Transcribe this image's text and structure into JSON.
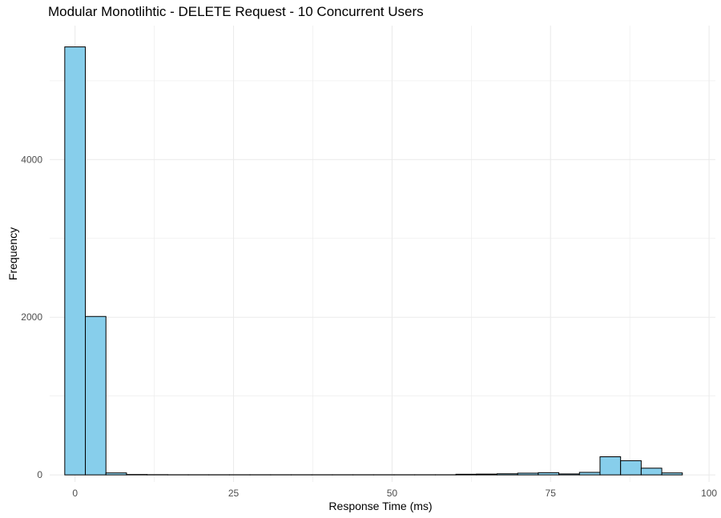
{
  "chart_data": {
    "type": "bar",
    "title": "Modular Monotlihtic - DELETE Request - 10 Concurrent Users",
    "xlabel": "Response Time (ms)",
    "ylabel": "Frequency",
    "xlim": [
      -4,
      101
    ],
    "ylim": [
      -90,
      5700
    ],
    "x_ticks": [
      0,
      25,
      50,
      75,
      100
    ],
    "y_ticks": [
      0,
      2000,
      4000
    ],
    "grid": true,
    "legend": "none",
    "bin_width": 3.247,
    "bin_start": -1.62,
    "values": [
      5430,
      2010,
      25,
      5,
      3,
      2,
      2,
      2,
      2,
      2,
      2,
      2,
      2,
      2,
      2,
      2,
      2,
      2,
      2,
      8,
      10,
      14,
      22,
      28,
      12,
      32,
      230,
      180,
      85,
      25
    ],
    "colors": {
      "fill": "#87ceeb",
      "stroke": "#000000",
      "grid": "#ebebeb"
    }
  }
}
